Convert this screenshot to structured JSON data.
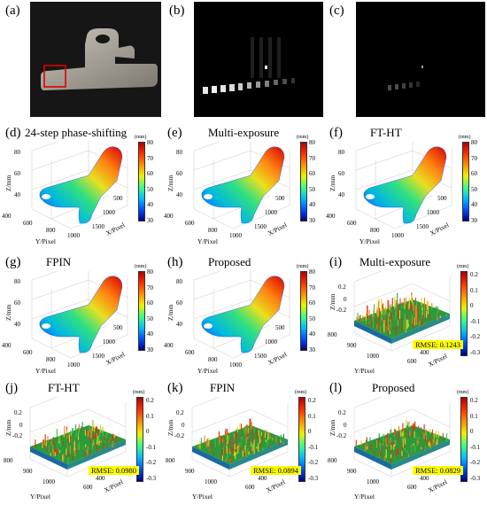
{
  "panels": {
    "a": {
      "label": "(a)"
    },
    "b": {
      "label": "(b)"
    },
    "c": {
      "label": "(c)"
    },
    "d": {
      "label": "(d)",
      "title": "24-step phase-shifting"
    },
    "e": {
      "label": "(e)",
      "title": "Multi-exposure"
    },
    "f": {
      "label": "(f)",
      "title": "FT-HT"
    },
    "g": {
      "label": "(g)",
      "title": "FPIN"
    },
    "h": {
      "label": "(h)",
      "title": "Proposed"
    },
    "i": {
      "label": "(i)",
      "title": "Multi-exposure",
      "rmse": "RMSE: 0.1243"
    },
    "j": {
      "label": "(j)",
      "title": "FT-HT",
      "rmse": "RMSE: 0.0980"
    },
    "k": {
      "label": "(k)",
      "title": "FPIN",
      "rmse": "RMSE: 0.0894"
    },
    "l": {
      "label": "(l)",
      "title": "Proposed",
      "rmse": "RMSE: 0.0829"
    }
  },
  "height_plot": {
    "unit": "(mm)",
    "zlabel": "Z/mm",
    "ylabel": "Y/Pixel",
    "xlabel": "X/Pixel",
    "zticks": [
      "80",
      "60",
      "40"
    ],
    "yticks": [
      "400",
      "600",
      "800",
      "1000"
    ],
    "xticks": [
      "500",
      "1000",
      "1500"
    ],
    "cbar_ticks": [
      "80",
      "70",
      "60",
      "50",
      "40",
      "30"
    ]
  },
  "error_plot": {
    "unit": "(mm)",
    "zlabel": "Z/mm",
    "ylabel": "Y/Pixel",
    "xlabel": "X/Pixel",
    "zticks": [
      "0.2",
      "0",
      "-0.2"
    ],
    "yticks": [
      "800",
      "900",
      "1000"
    ],
    "xticks": [
      "400",
      "600"
    ],
    "cbar_ticks": [
      "0.2",
      "0.1",
      "0",
      "-0.1",
      "-0.2",
      "-0.3"
    ]
  },
  "colors": {
    "highlight_box": "#e00000",
    "rmse_bg": "#ffff00"
  }
}
